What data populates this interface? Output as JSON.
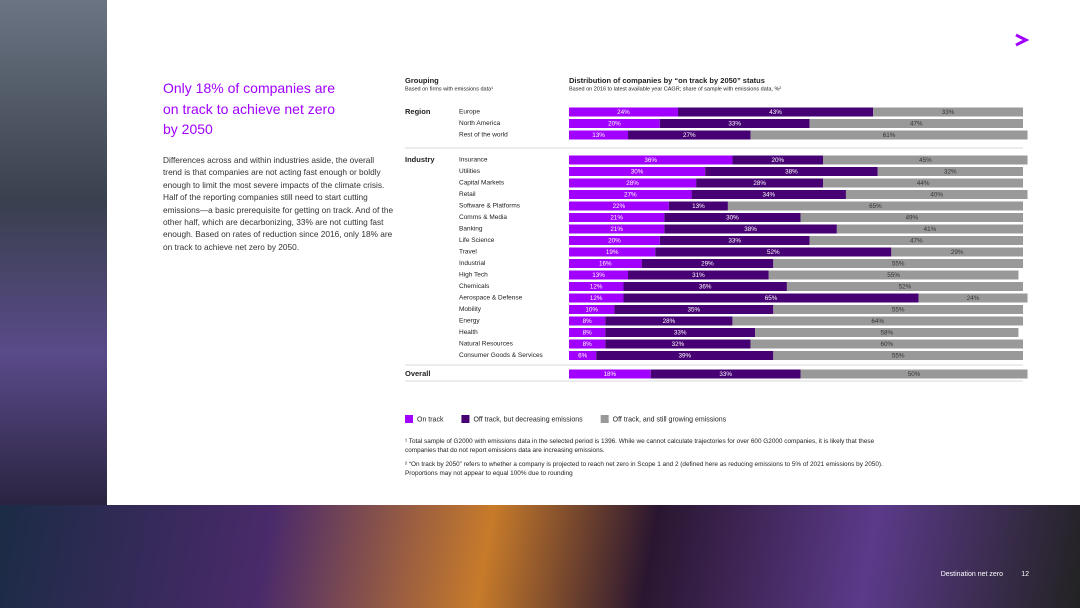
{
  "headline": "Only 18% of companies are on track to achieve net zero by 2050",
  "body": "Differences across and within industries aside, the overall trend is that companies are not acting fast enough or boldly enough to limit the most severe impacts of the climate crisis. Half of the reporting companies still need to start cutting emissions—a basic prerequisite for getting on track. And of the other half, which are decarbonizing, 33% are not cutting fast enough. Based on rates of reduction since 2016, only 18% are on track to achieve net zero by 2050.",
  "footnotes": [
    "¹ Total sample of G2000 with emissions data in the selected period is 1396. While we cannot calculate trajectories for over 600 G2000 companies, it is likely that these companies that do not report emissions data are increasing emissions.",
    "² “On track by 2050” refers to whether a company is projected to reach net zero in Scope 1 and 2 (defined here as reducing emissions to 5% of 2021 emissions by 2050). Proportions may not appear to equal 100% due to rounding"
  ],
  "footer": {
    "text": "Destination net zero",
    "page": "12"
  },
  "chart_data": {
    "type": "bar",
    "orientation": "horizontal",
    "stacked": true,
    "group_header": "Grouping",
    "group_subheader": "Based on firms with emissions data¹",
    "title": "Distribution of companies by “on track by 2050” status",
    "subtitle": "Based on 2016 to latest available year CAGR; share of sample with emissions data, %²",
    "xlim": [
      0,
      100
    ],
    "groups": [
      {
        "name": "Region",
        "categories": [
          "Europe",
          "North America",
          "Rest of the world"
        ]
      },
      {
        "name": "Industry",
        "categories": [
          "Insurance",
          "Utilities",
          "Capital Markets",
          "Retail",
          "Software & Platforms",
          "Comms & Media",
          "Banking",
          "Life Science",
          "Travel",
          "Industrial",
          "High Tech",
          "Chemicals",
          "Aerospace & Defense",
          "Mobility",
          "Energy",
          "Health",
          "Natural Resources",
          "Consumer Goods & Services"
        ]
      },
      {
        "name": "Overall",
        "categories": [
          null
        ]
      }
    ],
    "series": [
      {
        "name": "On track",
        "color": "#a100ff",
        "values": [
          24,
          20,
          13,
          36,
          30,
          28,
          27,
          22,
          21,
          21,
          20,
          19,
          16,
          13,
          12,
          12,
          10,
          8,
          8,
          8,
          6,
          18
        ],
        "value_labels": [
          "24%",
          "20%",
          "13%",
          "36%",
          "30%",
          "28%",
          "27%",
          "22%",
          "21%",
          "21%",
          "20%",
          "19%",
          "16%",
          "13%",
          "12%",
          "12%",
          "10%",
          "8%",
          "8%",
          "8%",
          "6%",
          "18%"
        ]
      },
      {
        "name": "Off track, but decreasing emissions",
        "color": "#460073",
        "values": [
          43,
          33,
          27,
          20,
          38,
          28,
          34,
          13,
          30,
          38,
          33,
          52,
          29,
          31,
          36,
          65,
          35,
          28,
          33,
          32,
          39,
          33
        ],
        "value_labels": [
          "43%",
          "33%",
          "27%",
          "20%",
          "38%",
          "28%",
          "34%",
          "13%",
          "30%",
          "38%",
          "33%",
          "52%",
          "29%",
          "31%",
          "36%",
          "65%",
          "35%",
          "28%",
          "33%",
          "32%",
          "39%",
          "33%"
        ]
      },
      {
        "name": "Off track, and still growing emissions",
        "color": "#999999",
        "values": [
          33,
          47,
          61,
          45,
          32,
          44,
          40,
          65,
          49,
          41,
          47,
          29,
          55,
          55,
          52,
          24,
          55,
          64,
          58,
          60,
          55,
          50
        ],
        "value_labels": [
          "33%",
          "47%",
          "61%",
          "45%",
          "32%",
          "44%",
          "40%",
          "65%",
          "49%",
          "41%",
          "47%",
          "29%",
          "55%",
          "55%",
          "52%",
          "24%",
          "55%",
          "64%",
          "58%",
          "60%",
          "55%",
          "50%"
        ]
      }
    ]
  }
}
